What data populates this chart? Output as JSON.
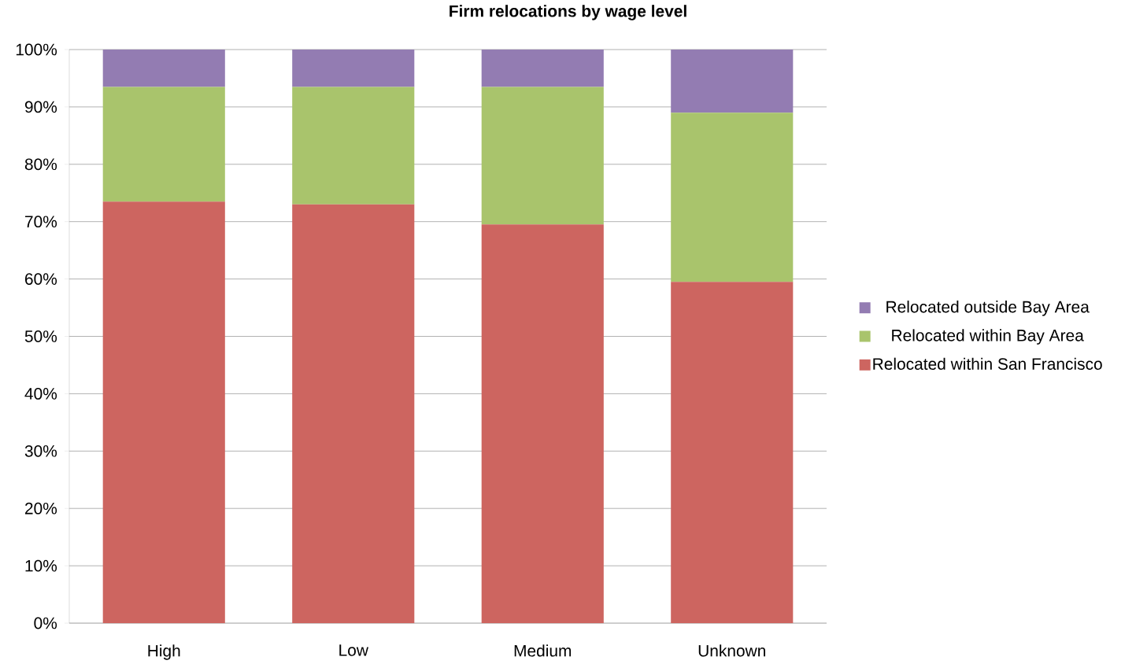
{
  "chart_data": {
    "type": "bar",
    "stacked": true,
    "title": "Firm relocations by wage level",
    "categories": [
      "High",
      "Low",
      "Medium",
      "Unknown"
    ],
    "series": [
      {
        "name": "Relocated within San Francisco",
        "color": "#cd6560",
        "values": [
          73.5,
          73,
          69.5,
          59.5
        ]
      },
      {
        "name": "Relocated within Bay Area",
        "color": "#a9c46c",
        "values": [
          20,
          20.5,
          24,
          29.5
        ]
      },
      {
        "name": "Relocated outside Bay Area",
        "color": "#937cb2",
        "values": [
          6.5,
          6.5,
          6.5,
          11
        ]
      }
    ],
    "ylim": [
      0,
      100
    ],
    "yticks": [
      {
        "value": 0,
        "label": "0%"
      },
      {
        "value": 10,
        "label": "10%"
      },
      {
        "value": 20,
        "label": "20%"
      },
      {
        "value": 30,
        "label": "30%"
      },
      {
        "value": 40,
        "label": "40%"
      },
      {
        "value": 50,
        "label": "50%"
      },
      {
        "value": 60,
        "label": "60%"
      },
      {
        "value": 70,
        "label": "70%"
      },
      {
        "value": 80,
        "label": "80%"
      },
      {
        "value": 90,
        "label": "90%"
      },
      {
        "value": 100,
        "label": "100%"
      }
    ],
    "grid": "y",
    "legend": "right"
  }
}
